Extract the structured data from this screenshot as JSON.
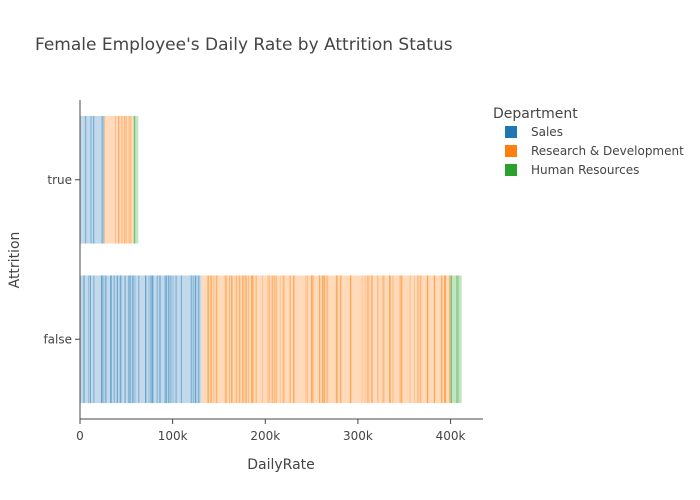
{
  "chart_data": {
    "type": "bar",
    "orientation": "horizontal",
    "barmode": "stacked",
    "title": "Female Employee's Daily Rate by Attrition Status",
    "xlabel": "DailyRate",
    "ylabel": "Attrition",
    "xlim": [
      0,
      435000
    ],
    "x_ticks": [
      0,
      100000,
      200000,
      300000,
      400000
    ],
    "x_tick_labels": [
      "0",
      "100k",
      "200k",
      "300k",
      "400k"
    ],
    "categories": [
      "true",
      "false"
    ],
    "legend": {
      "title": "Department",
      "position": "top-right"
    },
    "series": [
      {
        "name": "Sales",
        "color": "#1f77b4",
        "values": [
          26000,
          131000
        ]
      },
      {
        "name": "Research & Development",
        "color": "#ff7f0e",
        "values": [
          32000,
          269000
        ]
      },
      {
        "name": "Human Resources",
        "color": "#2ca02c",
        "values": [
          5000,
          12000
        ]
      }
    ]
  }
}
